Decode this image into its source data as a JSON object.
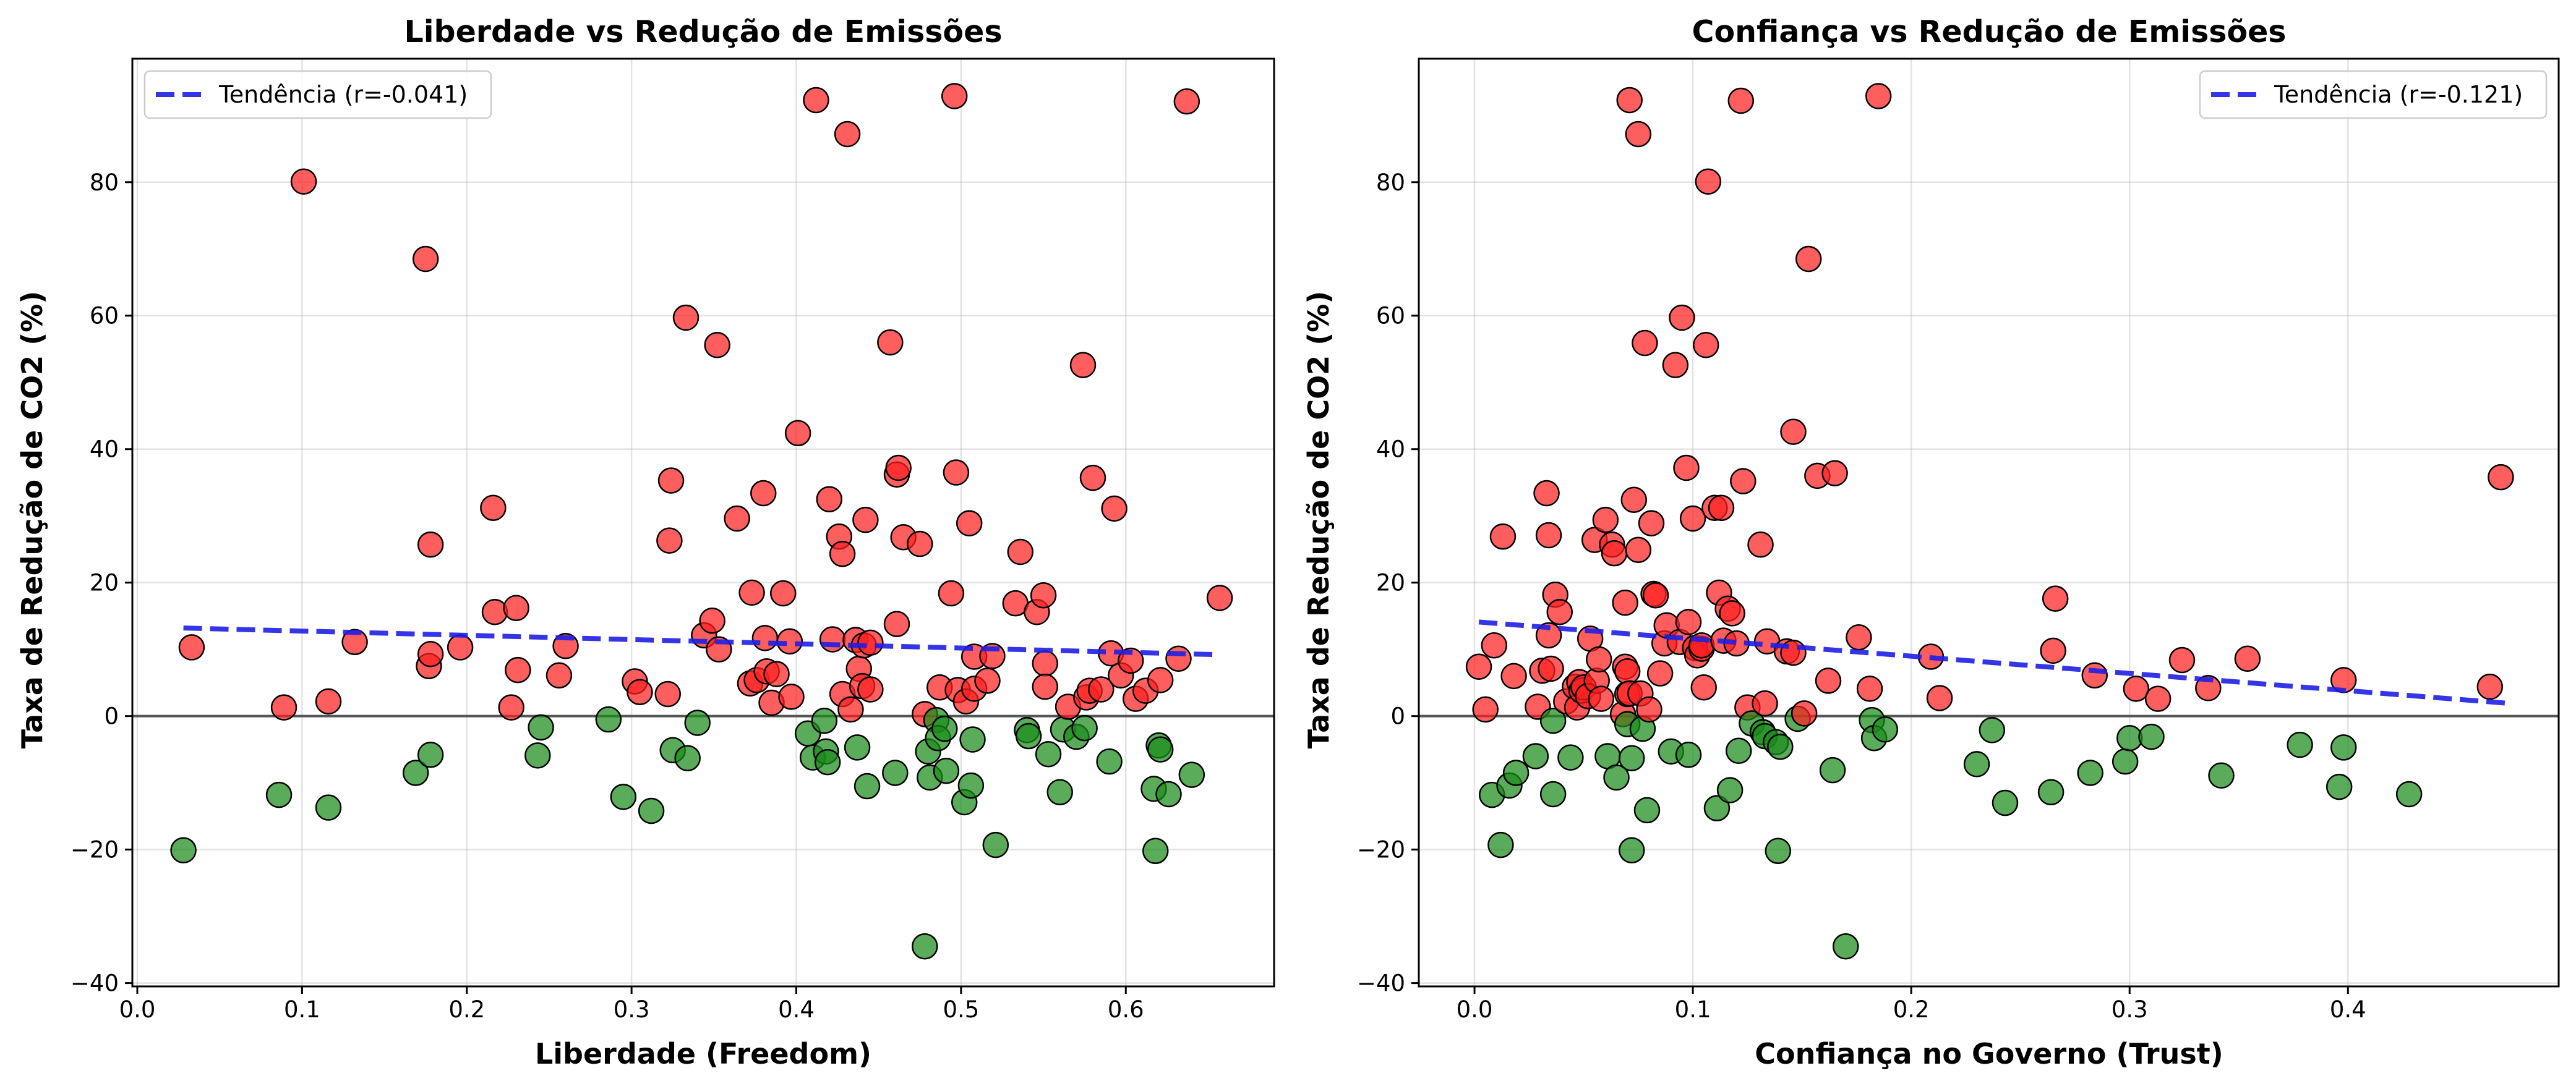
{
  "chart_data": [
    {
      "type": "scatter",
      "title": "Liberdade vs Redução de Emissões",
      "xlabel": "Liberdade (Freedom)",
      "ylabel": "Taxa de Redução de CO2 (%)",
      "xlim": [
        -0.003,
        0.69
      ],
      "ylim": [
        -40.5,
        98.5
      ],
      "xticks": [
        0.0,
        0.1,
        0.2,
        0.3,
        0.4,
        0.5,
        0.6
      ],
      "xtick_labels": [
        "0.0",
        "0.1",
        "0.2",
        "0.3",
        "0.4",
        "0.5",
        "0.6"
      ],
      "yticks": [
        -40,
        -20,
        0,
        20,
        40,
        60,
        80
      ],
      "ytick_labels": [
        "−40",
        "−20",
        "0",
        "20",
        "40",
        "60",
        "80"
      ],
      "grid": true,
      "legend": {
        "position": "top-left",
        "label": "Tendência (r=-0.041)"
      },
      "trend": {
        "x": [
          0.028,
          0.657
        ],
        "y": [
          13.2,
          9.2
        ]
      },
      "zero_line": 0,
      "colors": {
        "positive": "#ff2020",
        "negative": "#1a8c1a",
        "trend": "#1f1fe6",
        "zero": "#555555"
      },
      "points": [
        [
          0.033,
          10.3
        ],
        [
          0.028,
          -20.1
        ],
        [
          0.086,
          -11.8
        ],
        [
          0.089,
          1.3
        ],
        [
          0.101,
          80.1
        ],
        [
          0.116,
          2.2
        ],
        [
          0.116,
          -13.7
        ],
        [
          0.132,
          11.1
        ],
        [
          0.169,
          -8.5
        ],
        [
          0.175,
          68.5
        ],
        [
          0.177,
          7.5
        ],
        [
          0.178,
          25.7
        ],
        [
          0.178,
          9.3
        ],
        [
          0.178,
          -5.8
        ],
        [
          0.196,
          10.3
        ],
        [
          0.216,
          31.2
        ],
        [
          0.217,
          15.6
        ],
        [
          0.227,
          1.3
        ],
        [
          0.23,
          16.2
        ],
        [
          0.231,
          6.9
        ],
        [
          0.243,
          -5.9
        ],
        [
          0.245,
          -1.7
        ],
        [
          0.256,
          6.1
        ],
        [
          0.26,
          10.5
        ],
        [
          0.286,
          -0.5
        ],
        [
          0.295,
          -12.1
        ],
        [
          0.302,
          5.2
        ],
        [
          0.305,
          3.6
        ],
        [
          0.312,
          -14.2
        ],
        [
          0.322,
          3.3
        ],
        [
          0.323,
          26.3
        ],
        [
          0.324,
          35.3
        ],
        [
          0.325,
          -5.1
        ],
        [
          0.333,
          59.7
        ],
        [
          0.334,
          -6.3
        ],
        [
          0.34,
          -1.0
        ],
        [
          0.344,
          12.1
        ],
        [
          0.349,
          14.3
        ],
        [
          0.352,
          55.6
        ],
        [
          0.353,
          10.0
        ],
        [
          0.364,
          29.6
        ],
        [
          0.372,
          4.9
        ],
        [
          0.373,
          18.5
        ],
        [
          0.376,
          5.4
        ],
        [
          0.38,
          33.4
        ],
        [
          0.381,
          11.7
        ],
        [
          0.382,
          6.7
        ],
        [
          0.385,
          2.0
        ],
        [
          0.388,
          6.3
        ],
        [
          0.392,
          18.4
        ],
        [
          0.396,
          11.2
        ],
        [
          0.397,
          2.9
        ],
        [
          0.401,
          42.4
        ],
        [
          0.407,
          -2.6
        ],
        [
          0.41,
          -6.2
        ],
        [
          0.412,
          92.3
        ],
        [
          0.417,
          -0.7
        ],
        [
          0.418,
          -5.3
        ],
        [
          0.419,
          -6.9
        ],
        [
          0.42,
          32.5
        ],
        [
          0.422,
          11.5
        ],
        [
          0.426,
          26.9
        ],
        [
          0.428,
          3.3
        ],
        [
          0.428,
          24.3
        ],
        [
          0.431,
          87.2
        ],
        [
          0.433,
          1.0
        ],
        [
          0.436,
          11.4
        ],
        [
          0.437,
          -4.7
        ],
        [
          0.438,
          7.1
        ],
        [
          0.44,
          4.5
        ],
        [
          0.441,
          10.6
        ],
        [
          0.442,
          29.4
        ],
        [
          0.443,
          -10.5
        ],
        [
          0.445,
          11.0
        ],
        [
          0.445,
          4.0
        ],
        [
          0.457,
          56.0
        ],
        [
          0.46,
          -8.5
        ],
        [
          0.461,
          13.8
        ],
        [
          0.461,
          36.2
        ],
        [
          0.462,
          37.2
        ],
        [
          0.465,
          26.8
        ],
        [
          0.475,
          25.8
        ],
        [
          0.478,
          -34.5
        ],
        [
          0.478,
          0.3
        ],
        [
          0.48,
          -5.3
        ],
        [
          0.481,
          -9.2
        ],
        [
          0.485,
          -0.6
        ],
        [
          0.486,
          -3.3
        ],
        [
          0.487,
          4.3
        ],
        [
          0.49,
          -1.9
        ],
        [
          0.491,
          -8.2
        ],
        [
          0.494,
          18.4
        ],
        [
          0.496,
          92.9
        ],
        [
          0.497,
          36.5
        ],
        [
          0.498,
          3.9
        ],
        [
          0.502,
          -12.9
        ],
        [
          0.503,
          2.2
        ],
        [
          0.505,
          28.9
        ],
        [
          0.506,
          -10.4
        ],
        [
          0.507,
          -3.5
        ],
        [
          0.508,
          4.1
        ],
        [
          0.508,
          8.9
        ],
        [
          0.516,
          5.3
        ],
        [
          0.519,
          9.0
        ],
        [
          0.521,
          -19.3
        ],
        [
          0.533,
          16.9
        ],
        [
          0.536,
          24.6
        ],
        [
          0.54,
          -2.1
        ],
        [
          0.541,
          -3.0
        ],
        [
          0.546,
          15.6
        ],
        [
          0.55,
          18.1
        ],
        [
          0.551,
          7.9
        ],
        [
          0.551,
          4.4
        ],
        [
          0.553,
          -5.7
        ],
        [
          0.56,
          -11.4
        ],
        [
          0.562,
          -2.0
        ],
        [
          0.565,
          1.4
        ],
        [
          0.57,
          -3.1
        ],
        [
          0.574,
          52.6
        ],
        [
          0.575,
          -1.8
        ],
        [
          0.576,
          2.8
        ],
        [
          0.578,
          3.8
        ],
        [
          0.58,
          35.7
        ],
        [
          0.585,
          4.0
        ],
        [
          0.59,
          -6.8
        ],
        [
          0.591,
          9.4
        ],
        [
          0.593,
          31.1
        ],
        [
          0.597,
          6.1
        ],
        [
          0.603,
          8.3
        ],
        [
          0.606,
          2.6
        ],
        [
          0.612,
          3.8
        ],
        [
          0.617,
          -10.9
        ],
        [
          0.618,
          -20.2
        ],
        [
          0.62,
          -4.4
        ],
        [
          0.621,
          -5.0
        ],
        [
          0.621,
          5.4
        ],
        [
          0.626,
          -11.7
        ],
        [
          0.632,
          8.6
        ],
        [
          0.637,
          92.1
        ],
        [
          0.64,
          -8.8
        ],
        [
          0.657,
          17.7
        ]
      ]
    },
    {
      "type": "scatter",
      "title": "Confiança vs Redução de Emissões",
      "xlabel": "Confiança no Governo (Trust)",
      "ylabel": "Taxa de Redução de CO2 (%)",
      "xlim": [
        -0.0255,
        0.4965
      ],
      "ylim": [
        -40.5,
        98.5
      ],
      "xticks": [
        0.0,
        0.1,
        0.2,
        0.3,
        0.4
      ],
      "xtick_labels": [
        "0.0",
        "0.1",
        "0.2",
        "0.3",
        "0.4"
      ],
      "yticks": [
        -40,
        -20,
        0,
        20,
        40,
        60,
        80
      ],
      "ytick_labels": [
        "−40",
        "−20",
        "0",
        "20",
        "40",
        "60",
        "80"
      ],
      "grid": true,
      "legend": {
        "position": "top-right",
        "label": "Tendência (r=-0.121)"
      },
      "trend": {
        "x": [
          0.002,
          0.474
        ],
        "y": [
          14.1,
          1.9
        ]
      },
      "zero_line": 0,
      "colors": {
        "positive": "#ff2020",
        "negative": "#1a8c1a",
        "trend": "#1f1fe6",
        "zero": "#555555"
      },
      "points": [
        [
          0.002,
          7.4
        ],
        [
          0.005,
          1.0
        ],
        [
          0.008,
          -11.8
        ],
        [
          0.009,
          10.6
        ],
        [
          0.012,
          -19.3
        ],
        [
          0.013,
          26.9
        ],
        [
          0.016,
          -10.4
        ],
        [
          0.018,
          6.0
        ],
        [
          0.019,
          -8.5
        ],
        [
          0.028,
          -6.0
        ],
        [
          0.029,
          1.4
        ],
        [
          0.031,
          6.8
        ],
        [
          0.033,
          33.4
        ],
        [
          0.034,
          27.1
        ],
        [
          0.034,
          12.1
        ],
        [
          0.035,
          7.1
        ],
        [
          0.036,
          -0.7
        ],
        [
          0.036,
          -11.7
        ],
        [
          0.037,
          18.2
        ],
        [
          0.039,
          15.6
        ],
        [
          0.042,
          2.2
        ],
        [
          0.044,
          -6.2
        ],
        [
          0.046,
          4.4
        ],
        [
          0.047,
          1.3
        ],
        [
          0.048,
          5.1
        ],
        [
          0.049,
          3.8
        ],
        [
          0.05,
          4.3
        ],
        [
          0.052,
          3.0
        ],
        [
          0.053,
          11.6
        ],
        [
          0.055,
          26.4
        ],
        [
          0.056,
          5.3
        ],
        [
          0.057,
          8.5
        ],
        [
          0.058,
          2.6
        ],
        [
          0.06,
          29.4
        ],
        [
          0.061,
          -6.0
        ],
        [
          0.063,
          25.7
        ],
        [
          0.064,
          24.4
        ],
        [
          0.065,
          -9.2
        ],
        [
          0.068,
          0.3
        ],
        [
          0.069,
          17.0
        ],
        [
          0.069,
          7.4
        ],
        [
          0.07,
          6.7
        ],
        [
          0.07,
          3.3
        ],
        [
          0.07,
          -1.2
        ],
        [
          0.071,
          92.3
        ],
        [
          0.071,
          3.4
        ],
        [
          0.072,
          -6.3
        ],
        [
          0.072,
          -20.1
        ],
        [
          0.073,
          32.4
        ],
        [
          0.075,
          87.2
        ],
        [
          0.075,
          24.9
        ],
        [
          0.076,
          3.4
        ],
        [
          0.077,
          -1.9
        ],
        [
          0.078,
          55.9
        ],
        [
          0.079,
          -14.1
        ],
        [
          0.08,
          1.0
        ],
        [
          0.081,
          28.9
        ],
        [
          0.082,
          18.3
        ],
        [
          0.083,
          18.1
        ],
        [
          0.085,
          6.4
        ],
        [
          0.087,
          10.9
        ],
        [
          0.088,
          13.6
        ],
        [
          0.09,
          -5.3
        ],
        [
          0.092,
          52.6
        ],
        [
          0.094,
          11.1
        ],
        [
          0.095,
          59.7
        ],
        [
          0.097,
          37.2
        ],
        [
          0.098,
          -5.8
        ],
        [
          0.098,
          14.1
        ],
        [
          0.1,
          29.6
        ],
        [
          0.101,
          10.2
        ],
        [
          0.102,
          9.1
        ],
        [
          0.104,
          10.1
        ],
        [
          0.104,
          10.6
        ],
        [
          0.105,
          4.3
        ],
        [
          0.106,
          55.6
        ],
        [
          0.107,
          80.1
        ],
        [
          0.11,
          31.2
        ],
        [
          0.111,
          -13.8
        ],
        [
          0.112,
          18.5
        ],
        [
          0.113,
          31.2
        ],
        [
          0.114,
          11.3
        ],
        [
          0.116,
          16.1
        ],
        [
          0.117,
          -11.1
        ],
        [
          0.118,
          15.4
        ],
        [
          0.12,
          10.9
        ],
        [
          0.121,
          -5.2
        ],
        [
          0.122,
          92.2
        ],
        [
          0.123,
          35.2
        ],
        [
          0.125,
          1.3
        ],
        [
          0.127,
          -1.1
        ],
        [
          0.131,
          25.7
        ],
        [
          0.132,
          -2.4
        ],
        [
          0.133,
          -3.0
        ],
        [
          0.133,
          1.9
        ],
        [
          0.134,
          11.2
        ],
        [
          0.138,
          -3.9
        ],
        [
          0.139,
          -20.2
        ],
        [
          0.14,
          -4.6
        ],
        [
          0.143,
          9.7
        ],
        [
          0.146,
          9.5
        ],
        [
          0.146,
          42.6
        ],
        [
          0.148,
          -0.4
        ],
        [
          0.151,
          0.4
        ],
        [
          0.153,
          68.5
        ],
        [
          0.157,
          36.0
        ],
        [
          0.162,
          5.3
        ],
        [
          0.164,
          -8.1
        ],
        [
          0.165,
          36.4
        ],
        [
          0.17,
          -34.5
        ],
        [
          0.176,
          11.8
        ],
        [
          0.181,
          4.1
        ],
        [
          0.182,
          -0.6
        ],
        [
          0.183,
          -3.3
        ],
        [
          0.185,
          92.9
        ],
        [
          0.188,
          -2.0
        ],
        [
          0.209,
          8.9
        ],
        [
          0.213,
          2.7
        ],
        [
          0.23,
          -7.2
        ],
        [
          0.237,
          -2.1
        ],
        [
          0.243,
          -13.0
        ],
        [
          0.264,
          -11.4
        ],
        [
          0.265,
          9.8
        ],
        [
          0.266,
          17.6
        ],
        [
          0.282,
          -8.5
        ],
        [
          0.284,
          6.1
        ],
        [
          0.298,
          -6.8
        ],
        [
          0.3,
          -3.3
        ],
        [
          0.303,
          4.1
        ],
        [
          0.31,
          -3.1
        ],
        [
          0.313,
          2.6
        ],
        [
          0.324,
          8.4
        ],
        [
          0.336,
          4.2
        ],
        [
          0.342,
          -8.9
        ],
        [
          0.354,
          8.6
        ],
        [
          0.378,
          -4.3
        ],
        [
          0.396,
          -10.6
        ],
        [
          0.398,
          5.4
        ],
        [
          0.398,
          -4.7
        ],
        [
          0.428,
          -11.7
        ],
        [
          0.465,
          4.4
        ],
        [
          0.47,
          35.8
        ]
      ]
    }
  ]
}
